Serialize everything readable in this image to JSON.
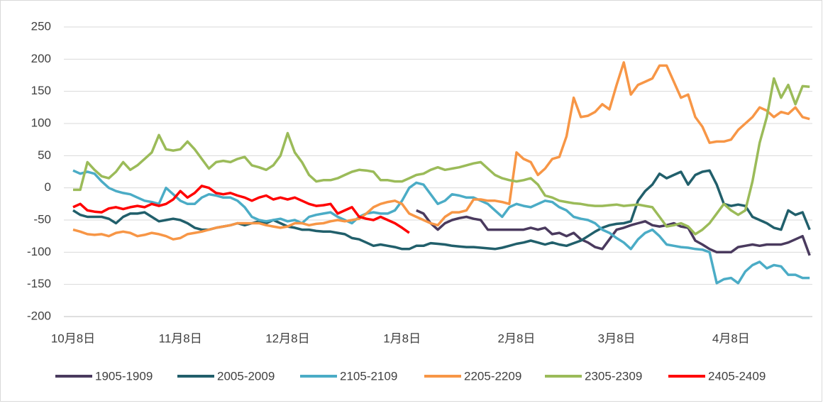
{
  "chart_data": {
    "type": "line",
    "categories": [
      "10月8日",
      null,
      null,
      null,
      null,
      null,
      null,
      null,
      null,
      null,
      null,
      null,
      null,
      null,
      null,
      "11月8日",
      null,
      null,
      null,
      null,
      null,
      null,
      null,
      null,
      null,
      null,
      null,
      null,
      null,
      null,
      "12月8日",
      null,
      null,
      null,
      null,
      null,
      null,
      null,
      null,
      null,
      null,
      null,
      null,
      null,
      null,
      null,
      "1月8日",
      null,
      null,
      null,
      null,
      null,
      null,
      null,
      null,
      null,
      null,
      null,
      null,
      null,
      null,
      null,
      "2月8日",
      null,
      null,
      null,
      null,
      null,
      null,
      null,
      null,
      null,
      null,
      null,
      null,
      null,
      "3月8日",
      null,
      null,
      null,
      null,
      null,
      null,
      null,
      null,
      null,
      null,
      null,
      null,
      null,
      null,
      null,
      "4月8日",
      null,
      null,
      null,
      null,
      null,
      null,
      null,
      null,
      null,
      null,
      null
    ],
    "ylim": [
      -200,
      250
    ],
    "yticks": [
      -200,
      -150,
      -100,
      -50,
      0,
      50,
      100,
      150,
      200,
      250
    ],
    "grid": true,
    "legend": "bottom",
    "series": [
      {
        "name": "1905-1909",
        "color": "#4a3a5e",
        "values": [
          null,
          null,
          null,
          null,
          null,
          null,
          null,
          null,
          null,
          null,
          null,
          null,
          null,
          null,
          null,
          null,
          null,
          null,
          null,
          null,
          null,
          null,
          null,
          null,
          null,
          null,
          null,
          null,
          null,
          null,
          null,
          null,
          null,
          null,
          null,
          null,
          null,
          null,
          null,
          null,
          null,
          null,
          null,
          null,
          null,
          null,
          null,
          null,
          -35,
          -40,
          -55,
          -65,
          -55,
          -50,
          -47,
          -45,
          -48,
          -50,
          -65,
          -65,
          -65,
          -65,
          -65,
          -65,
          -62,
          -65,
          -62,
          -72,
          -70,
          -75,
          -70,
          -80,
          -85,
          -92,
          -95,
          -80,
          -65,
          -62,
          -58,
          -55,
          -52,
          -58,
          -60,
          -58,
          -55,
          -60,
          -62,
          -82,
          -88,
          -95,
          -100,
          -100,
          -100,
          -92,
          -90,
          -88,
          -90,
          -88,
          -88,
          -88,
          -85,
          -80,
          -75,
          -105
        ]
      },
      {
        "name": "2005-2009",
        "color": "#215f6b",
        "values": [
          -35,
          -42,
          -45,
          -45,
          -45,
          -48,
          -55,
          -45,
          -40,
          -40,
          -38,
          -45,
          -52,
          -50,
          -48,
          -50,
          -55,
          -62,
          -65,
          -65,
          -62,
          -60,
          -58,
          -55,
          -58,
          -55,
          -52,
          -55,
          -50,
          -55,
          -60,
          -62,
          -65,
          -65,
          -67,
          -68,
          -68,
          -70,
          -72,
          -78,
          -80,
          -85,
          -90,
          -88,
          -90,
          -92,
          -95,
          -95,
          -90,
          -90,
          -86,
          -87,
          -88,
          -90,
          -91,
          -92,
          -92,
          -93,
          -94,
          -95,
          -93,
          -90,
          -87,
          -85,
          -82,
          -85,
          -88,
          -85,
          -88,
          -90,
          -86,
          -82,
          -75,
          -68,
          -62,
          -58,
          -56,
          -55,
          -52,
          -20,
          -5,
          5,
          22,
          15,
          20,
          25,
          5,
          20,
          25,
          27,
          5,
          -25,
          -28,
          -26,
          -28,
          -45,
          -50,
          -55,
          -62,
          -65,
          -35,
          -42,
          -38,
          -65
        ]
      },
      {
        "name": "2105-2109",
        "color": "#4bacc6",
        "values": [
          27,
          22,
          25,
          22,
          10,
          0,
          -5,
          -8,
          -10,
          -15,
          -20,
          -22,
          -25,
          0,
          -10,
          -20,
          -25,
          -25,
          -15,
          -10,
          -12,
          -15,
          -15,
          -20,
          -30,
          -45,
          -50,
          -52,
          -50,
          -48,
          -52,
          -50,
          -55,
          -45,
          -42,
          -40,
          -38,
          -45,
          -50,
          -55,
          -45,
          -40,
          -38,
          -40,
          -40,
          -35,
          -20,
          0,
          8,
          5,
          -10,
          -25,
          -20,
          -10,
          -12,
          -15,
          -15,
          -20,
          -25,
          -35,
          -45,
          -30,
          -25,
          -28,
          -30,
          -25,
          -20,
          -22,
          -30,
          -35,
          -45,
          -48,
          -50,
          -55,
          -65,
          -70,
          -78,
          -85,
          -95,
          -80,
          -70,
          -65,
          -75,
          -88,
          -90,
          -92,
          -93,
          -95,
          -96,
          -100,
          -148,
          -142,
          -140,
          -148,
          -130,
          -120,
          -115,
          -125,
          -120,
          -122,
          -135,
          -135,
          -140,
          -140
        ]
      },
      {
        "name": "2205-2209",
        "color": "#f79646",
        "values": [
          -65,
          -68,
          -72,
          -73,
          -72,
          -75,
          -70,
          -68,
          -70,
          -75,
          -73,
          -70,
          -72,
          -75,
          -80,
          -78,
          -72,
          -70,
          -68,
          -65,
          -62,
          -60,
          -58,
          -55,
          -55,
          -55,
          -55,
          -58,
          -60,
          -62,
          -60,
          -55,
          -55,
          -58,
          -56,
          -55,
          -52,
          -50,
          -52,
          -50,
          -48,
          -40,
          -30,
          -25,
          -22,
          -20,
          -25,
          -40,
          -45,
          -50,
          -55,
          -58,
          -45,
          -38,
          -38,
          -35,
          -18,
          -18,
          -20,
          -20,
          -22,
          -25,
          55,
          45,
          40,
          20,
          30,
          45,
          48,
          80,
          140,
          110,
          112,
          118,
          130,
          122,
          160,
          195,
          145,
          160,
          165,
          170,
          190,
          190,
          165,
          140,
          145,
          110,
          95,
          70,
          72,
          72,
          75,
          90,
          100,
          110,
          125,
          120,
          110,
          118,
          115,
          125,
          110,
          107
        ]
      },
      {
        "name": "2305-2309",
        "color": "#9bbb59",
        "values": [
          -3,
          -3,
          40,
          28,
          18,
          15,
          25,
          40,
          28,
          35,
          45,
          55,
          82,
          60,
          58,
          60,
          72,
          60,
          45,
          30,
          40,
          42,
          40,
          45,
          48,
          35,
          32,
          28,
          35,
          50,
          85,
          55,
          40,
          20,
          10,
          12,
          12,
          15,
          20,
          25,
          28,
          27,
          25,
          12,
          12,
          10,
          10,
          15,
          20,
          22,
          28,
          32,
          28,
          30,
          32,
          35,
          38,
          40,
          30,
          20,
          15,
          12,
          10,
          12,
          15,
          5,
          -12,
          -15,
          -20,
          -22,
          -24,
          -25,
          -27,
          -28,
          -28,
          -27,
          -26,
          -28,
          -27,
          -26,
          -28,
          -30,
          -45,
          -60,
          -58,
          -55,
          -60,
          -72,
          -65,
          -55,
          -40,
          -25,
          -35,
          -42,
          -35,
          10,
          70,
          110,
          170,
          140,
          160,
          130,
          158,
          157
        ]
      },
      {
        "name": "2405-2409",
        "color": "#ff0000",
        "values": [
          -30,
          -25,
          -35,
          -37,
          -38,
          -32,
          -30,
          -33,
          -30,
          -28,
          -30,
          -25,
          -28,
          -25,
          -18,
          -5,
          -15,
          -8,
          3,
          0,
          -8,
          -10,
          -8,
          -12,
          -15,
          -20,
          -15,
          -12,
          -18,
          -15,
          -18,
          -15,
          -20,
          -25,
          -28,
          -27,
          -25,
          -40,
          -35,
          -30,
          -45,
          -48,
          -50,
          -45,
          -50,
          -55,
          -62,
          -70,
          null,
          null,
          null,
          null,
          null,
          null,
          null,
          null,
          null,
          null,
          null,
          null,
          null,
          null,
          null,
          null,
          null,
          null,
          null,
          null,
          null,
          null,
          null,
          null,
          null,
          null,
          null,
          null,
          null,
          null,
          null,
          null,
          null,
          null,
          null,
          null,
          null,
          null,
          null,
          null,
          null,
          null,
          null,
          null,
          null,
          null,
          null,
          null,
          null,
          null,
          null,
          null,
          null,
          null,
          null,
          null
        ]
      }
    ]
  }
}
